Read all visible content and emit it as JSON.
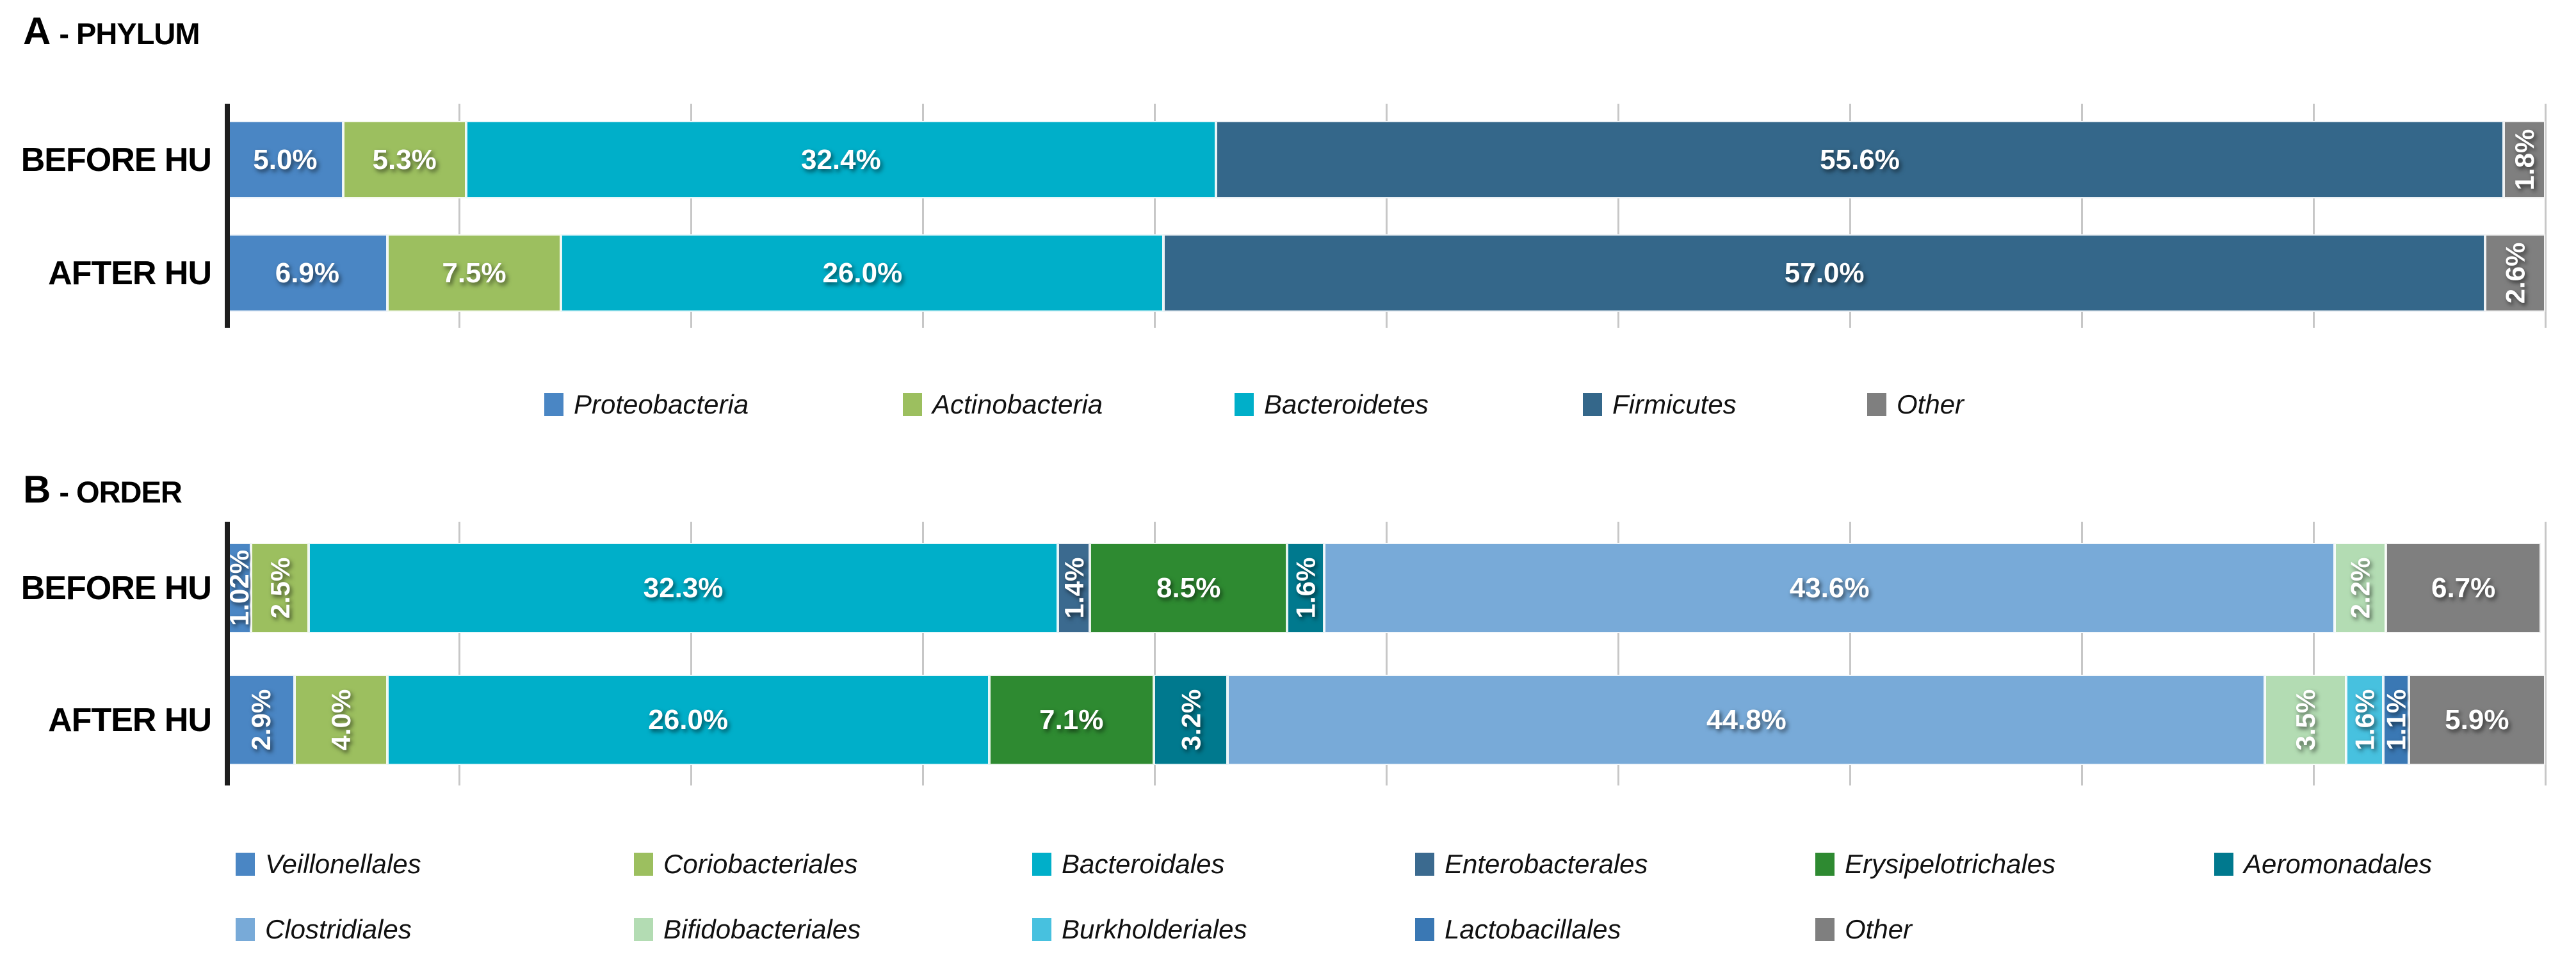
{
  "figure": {
    "colors": {
      "Proteobacteria": "#4A86C4",
      "Actinobacteria": "#9CBF5F",
      "Bacteroidetes": "#00AFC9",
      "Firmicutes": "#34678A",
      "Other": "#7F7F7F",
      "Veillonellales": "#4A86C4",
      "Coriobacteriales": "#9CBF5F",
      "Bacteroidales": "#00AFC9",
      "Enterobacterales": "#3B6A8F",
      "Erysipelotrichales": "#2E8A31",
      "Aeromonadales": "#00798E",
      "Clostridiales": "#78AAD8",
      "Bifidobacteriales": "#B3DCB3",
      "Burkholderiales": "#47C1DF",
      "Lactobacillales": "#3A78B4"
    },
    "panels": [
      {
        "key": "A",
        "title": {
          "letter": "A",
          "rest": "- PHYLUM"
        },
        "rows": [
          {
            "label": "BEFORE HU",
            "segments": [
              {
                "series": "Proteobacteria",
                "pct": 5.0,
                "text": "5.0%",
                "rotated": false
              },
              {
                "series": "Actinobacteria",
                "pct": 5.3,
                "text": "5.3%",
                "rotated": false
              },
              {
                "series": "Bacteroidetes",
                "pct": 32.4,
                "text": "32.4%",
                "rotated": false
              },
              {
                "series": "Firmicutes",
                "pct": 55.6,
                "text": "55.6%",
                "rotated": false
              },
              {
                "series": "Other",
                "pct": 1.8,
                "text": "1.8%",
                "rotated": true
              }
            ]
          },
          {
            "label": "AFTER HU",
            "segments": [
              {
                "series": "Proteobacteria",
                "pct": 6.9,
                "text": "6.9%",
                "rotated": false
              },
              {
                "series": "Actinobacteria",
                "pct": 7.5,
                "text": "7.5%",
                "rotated": false
              },
              {
                "series": "Bacteroidetes",
                "pct": 26.0,
                "text": "26.0%",
                "rotated": false
              },
              {
                "series": "Firmicutes",
                "pct": 57.0,
                "text": "57.0%",
                "rotated": false
              },
              {
                "series": "Other",
                "pct": 2.6,
                "text": "2.6%",
                "rotated": true
              }
            ]
          }
        ],
        "legend": [
          "Proteobacteria",
          "Actinobacteria",
          "Bacteroidetes",
          "Firmicutes",
          "Other"
        ]
      },
      {
        "key": "B",
        "title": {
          "letter": "B",
          "rest": "- ORDER"
        },
        "rows": [
          {
            "label": "BEFORE HU",
            "segments": [
              {
                "series": "Veillonellales",
                "pct": 1.02,
                "text": "1.02%",
                "rotated": true
              },
              {
                "series": "Coriobacteriales",
                "pct": 2.5,
                "text": "2.5%",
                "rotated": true
              },
              {
                "series": "Bacteroidales",
                "pct": 32.3,
                "text": "32.3%",
                "rotated": false
              },
              {
                "series": "Enterobacterales",
                "pct": 1.4,
                "text": "1.4%",
                "rotated": true
              },
              {
                "series": "Erysipelotrichales",
                "pct": 8.5,
                "text": "8.5%",
                "rotated": false
              },
              {
                "series": "Aeromonadales",
                "pct": 1.6,
                "text": "1.6%",
                "rotated": true
              },
              {
                "series": "Clostridiales",
                "pct": 43.6,
                "text": "43.6%",
                "rotated": false
              },
              {
                "series": "Bifidobacteriales",
                "pct": 2.2,
                "text": "2.2%",
                "rotated": true
              },
              {
                "series": "Other",
                "pct": 6.7,
                "text": "6.7%",
                "rotated": false
              }
            ]
          },
          {
            "label": "AFTER HU",
            "segments": [
              {
                "series": "Veillonellales",
                "pct": 2.9,
                "text": "2.9%",
                "rotated": true
              },
              {
                "series": "Coriobacteriales",
                "pct": 4.0,
                "text": "4.0%",
                "rotated": true
              },
              {
                "series": "Bacteroidales",
                "pct": 26.0,
                "text": "26.0%",
                "rotated": false
              },
              {
                "series": "Erysipelotrichales",
                "pct": 7.1,
                "text": "7.1%",
                "rotated": false
              },
              {
                "series": "Aeromonadales",
                "pct": 3.2,
                "text": "3.2%",
                "rotated": true
              },
              {
                "series": "Clostridiales",
                "pct": 44.8,
                "text": "44.8%",
                "rotated": false
              },
              {
                "series": "Bifidobacteriales",
                "pct": 3.5,
                "text": "3.5%",
                "rotated": true
              },
              {
                "series": "Burkholderiales",
                "pct": 1.6,
                "text": "1.6%",
                "rotated": true
              },
              {
                "series": "Lactobacillales",
                "pct": 1.1,
                "text": "1.1%",
                "rotated": true
              },
              {
                "series": "Other",
                "pct": 5.9,
                "text": "5.9%",
                "rotated": false
              }
            ]
          }
        ],
        "legend": [
          "Veillonellales",
          "Coriobacteriales",
          "Bacteroidales",
          "Enterobacterales",
          "Erysipelotrichales",
          "Aeromonadales",
          "Clostridiales",
          "Bifidobacteriales",
          "Burkholderiales",
          "Lactobacillales",
          "Other"
        ]
      }
    ]
  },
  "chart_data": [
    {
      "type": "bar",
      "orientation": "horizontal",
      "stacked": true,
      "title": "A - PHYLUM",
      "categories": [
        "BEFORE HU",
        "AFTER HU"
      ],
      "series": [
        {
          "name": "Proteobacteria",
          "values": [
            5.0,
            6.9
          ]
        },
        {
          "name": "Actinobacteria",
          "values": [
            5.3,
            7.5
          ]
        },
        {
          "name": "Bacteroidetes",
          "values": [
            32.4,
            26.0
          ]
        },
        {
          "name": "Firmicutes",
          "values": [
            55.6,
            57.0
          ]
        },
        {
          "name": "Other",
          "values": [
            1.8,
            2.6
          ]
        }
      ],
      "unit": "%",
      "xlim": [
        0,
        100
      ],
      "gridlines": "vertical every 10%",
      "legend_position": "bottom"
    },
    {
      "type": "bar",
      "orientation": "horizontal",
      "stacked": true,
      "title": "B - ORDER",
      "categories": [
        "BEFORE HU",
        "AFTER HU"
      ],
      "series": [
        {
          "name": "Veillonellales",
          "values": [
            1.02,
            2.9
          ]
        },
        {
          "name": "Coriobacteriales",
          "values": [
            2.5,
            4.0
          ]
        },
        {
          "name": "Bacteroidales",
          "values": [
            32.3,
            26.0
          ]
        },
        {
          "name": "Enterobacterales",
          "values": [
            1.4,
            0
          ]
        },
        {
          "name": "Erysipelotrichales",
          "values": [
            8.5,
            7.1
          ]
        },
        {
          "name": "Aeromonadales",
          "values": [
            1.6,
            3.2
          ]
        },
        {
          "name": "Clostridiales",
          "values": [
            43.6,
            44.8
          ]
        },
        {
          "name": "Bifidobacteriales",
          "values": [
            2.2,
            3.5
          ]
        },
        {
          "name": "Burkholderiales",
          "values": [
            0,
            1.6
          ]
        },
        {
          "name": "Lactobacillales",
          "values": [
            0,
            1.1
          ]
        },
        {
          "name": "Other",
          "values": [
            6.7,
            5.9
          ]
        }
      ],
      "unit": "%",
      "xlim": [
        0,
        100
      ],
      "gridlines": "vertical every 10%",
      "legend_position": "bottom"
    }
  ]
}
